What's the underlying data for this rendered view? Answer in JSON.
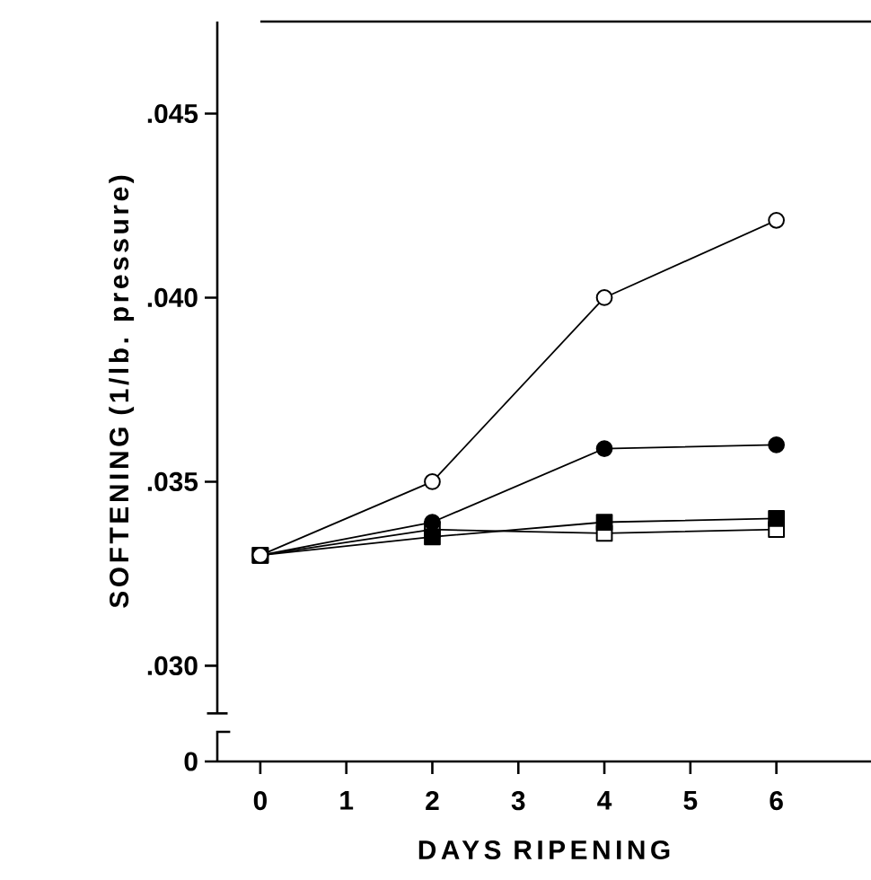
{
  "chart_data": {
    "type": "line",
    "xlabel": "DAYS RIPENING",
    "ylabel": "SOFTENING (1/lb. pressure)",
    "x": [
      0,
      2,
      4,
      6
    ],
    "series": [
      {
        "color": "#ffffff",
        "marker": "circle",
        "values": [
          0.033,
          0.035,
          0.04,
          0.0421
        ]
      },
      {
        "color": "#000000",
        "marker": "circle",
        "values": [
          0.033,
          0.0339,
          0.0359,
          0.036
        ]
      },
      {
        "color": "#000000",
        "marker": "square",
        "values": [
          0.033,
          0.0335,
          0.0339,
          0.034
        ]
      },
      {
        "color": "#ffffff",
        "marker": "square",
        "values": [
          0.033,
          0.0337,
          0.0336,
          0.0337
        ]
      }
    ],
    "xlim": [
      -0.5,
      7.1
    ],
    "ylim": [
      0.0274,
      0.0475
    ],
    "xticks": [
      0,
      1,
      2,
      3,
      4,
      5,
      6
    ],
    "yticks": [
      {
        "value": 0.0274,
        "label": "0"
      },
      {
        "value": 0.03,
        "label": ".030"
      },
      {
        "value": 0.035,
        "label": ".035"
      },
      {
        "value": 0.04,
        "label": ".040"
      },
      {
        "value": 0.045,
        "label": ".045"
      }
    ],
    "grid": false,
    "line_style": "solid"
  }
}
